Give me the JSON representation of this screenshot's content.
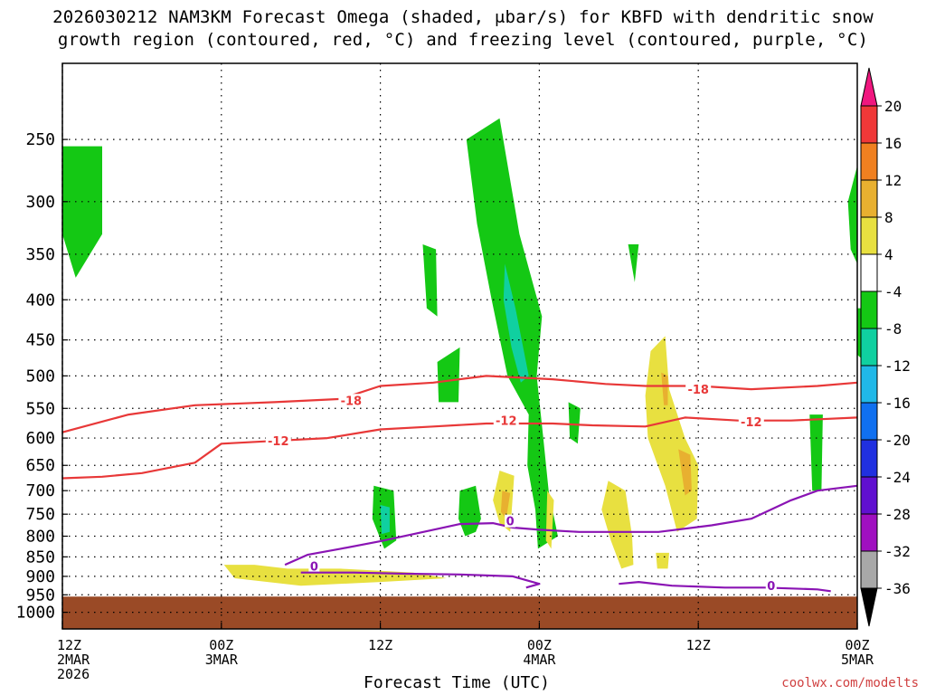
{
  "title_line1": "2026030212 NAM3KM Forecast Omega (shaded, μbar/s) for KBFD with dendritic snow",
  "title_line2": "growth region (contoured, red, °C) and freezing level (contoured, purple, °C)",
  "credit": "coolwx.com/modelts",
  "chart_data": {
    "type": "heatmap",
    "xlabel": "Forecast Time (UTC)",
    "x_ticks": [
      {
        "hour": 0,
        "l1": "12Z",
        "l2": "2MAR",
        "l3": "2026"
      },
      {
        "hour": 12,
        "l1": "00Z",
        "l2": "3MAR",
        "l3": ""
      },
      {
        "hour": 24,
        "l1": "12Z",
        "l2": "",
        "l3": ""
      },
      {
        "hour": 36,
        "l1": "00Z",
        "l2": "4MAR",
        "l3": ""
      },
      {
        "hour": 48,
        "l1": "12Z",
        "l2": "",
        "l3": ""
      },
      {
        "hour": 60,
        "l1": "00Z",
        "l2": "5MAR",
        "l3": ""
      }
    ],
    "y_ticks": [
      250,
      300,
      350,
      400,
      450,
      500,
      550,
      600,
      650,
      700,
      750,
      800,
      850,
      900,
      950,
      1000
    ],
    "ylim_hPa": [
      200,
      1050
    ],
    "grid": true,
    "colorbar": {
      "labels": [
        "20",
        "16",
        "12",
        "8",
        "4",
        "-4",
        "-8",
        "-12",
        "-16",
        "-20",
        "-24",
        "-28",
        "-32",
        "-36"
      ],
      "colors": [
        "#f0177f",
        "#f03838",
        "#f08020",
        "#e8b030",
        "#e8e040",
        "#ffffff",
        "#14c814",
        "#10d0a0",
        "#20b8e8",
        "#1070f0",
        "#2030e0",
        "#6010d0",
        "#a010c0",
        "#a8a8a8",
        "#000000"
      ]
    },
    "terrain": {
      "color": "#9a4a26",
      "surface_hPa": 955
    },
    "omega_regions": [
      {
        "level": "-4",
        "color": "#14c814",
        "points": [
          [
            0,
            255
          ],
          [
            3,
            255
          ],
          [
            3,
            330
          ],
          [
            1,
            375
          ],
          [
            0,
            330
          ]
        ]
      },
      {
        "level": "-4",
        "color": "#14c814",
        "points": [
          [
            30.5,
            250
          ],
          [
            33,
            235
          ],
          [
            34.5,
            330
          ],
          [
            36.2,
            420
          ],
          [
            35.8,
            500
          ],
          [
            36.3,
            600
          ],
          [
            36.7,
            700
          ],
          [
            37.4,
            800
          ],
          [
            35.9,
            830
          ],
          [
            35.7,
            740
          ],
          [
            35.1,
            650
          ],
          [
            35.2,
            560
          ],
          [
            33.6,
            500
          ],
          [
            32.4,
            400
          ],
          [
            31.3,
            320
          ]
        ]
      },
      {
        "level": "-8",
        "color": "#10d0a0",
        "points": [
          [
            33.4,
            360
          ],
          [
            34.2,
            410
          ],
          [
            35.2,
            500
          ],
          [
            34.6,
            510
          ],
          [
            33.9,
            460
          ],
          [
            33.3,
            400
          ]
        ]
      },
      {
        "level": "-4",
        "color": "#14c814",
        "points": [
          [
            27.2,
            340
          ],
          [
            28.2,
            345
          ],
          [
            28.3,
            420
          ],
          [
            27.5,
            410
          ]
        ]
      },
      {
        "level": "-4",
        "color": "#14c814",
        "points": [
          [
            28.3,
            480
          ],
          [
            30,
            460
          ],
          [
            29.9,
            540
          ],
          [
            28.4,
            540
          ]
        ]
      },
      {
        "level": "-4",
        "color": "#14c814",
        "points": [
          [
            23.5,
            690
          ],
          [
            25,
            700
          ],
          [
            25.2,
            810
          ],
          [
            24.3,
            830
          ],
          [
            23.4,
            760
          ]
        ]
      },
      {
        "level": "-8",
        "color": "#10d0a0",
        "points": [
          [
            24,
            730
          ],
          [
            24.7,
            735
          ],
          [
            24.7,
            790
          ],
          [
            24.1,
            795
          ]
        ]
      },
      {
        "level": "-4",
        "color": "#14c814",
        "points": [
          [
            30,
            700
          ],
          [
            31.2,
            690
          ],
          [
            31.6,
            760
          ],
          [
            31.2,
            790
          ],
          [
            30.4,
            800
          ],
          [
            29.9,
            760
          ]
        ]
      },
      {
        "level": "-4",
        "color": "#14c814",
        "points": [
          [
            38.2,
            540
          ],
          [
            39.1,
            550
          ],
          [
            38.9,
            610
          ],
          [
            38.3,
            600
          ]
        ]
      },
      {
        "level": "-4",
        "color": "#14c814",
        "points": [
          [
            42.7,
            340
          ],
          [
            43.5,
            340
          ],
          [
            43.2,
            380
          ]
        ]
      },
      {
        "level": "-4",
        "color": "#14c814",
        "points": [
          [
            56.4,
            560
          ],
          [
            57.4,
            560
          ],
          [
            57.3,
            700
          ],
          [
            56.6,
            700
          ]
        ]
      },
      {
        "level": "-4",
        "color": "#14c814",
        "points": [
          [
            59.3,
            300
          ],
          [
            60,
            270
          ],
          [
            60,
            360
          ],
          [
            59.5,
            345
          ]
        ]
      },
      {
        "level": "-4",
        "color": "#14c814",
        "points": [
          [
            60,
            410
          ],
          [
            61.2,
            410
          ],
          [
            61.2,
            490
          ],
          [
            60,
            470
          ]
        ]
      },
      {
        "level": "4",
        "color": "#e8e040",
        "points": [
          [
            44.4,
            465
          ],
          [
            45.5,
            445
          ],
          [
            45.8,
            520
          ],
          [
            47,
            600
          ],
          [
            48,
            650
          ],
          [
            47.9,
            760
          ],
          [
            46.4,
            790
          ],
          [
            45.5,
            690
          ],
          [
            44.2,
            600
          ],
          [
            44,
            530
          ]
        ]
      },
      {
        "level": "8",
        "color": "#e8b030",
        "points": [
          [
            46.5,
            620
          ],
          [
            47.4,
            630
          ],
          [
            47.5,
            700
          ],
          [
            47,
            710
          ]
        ]
      },
      {
        "level": "8",
        "color": "#e8b030",
        "points": [
          [
            45.2,
            495
          ],
          [
            45.7,
            500
          ],
          [
            45.7,
            545
          ],
          [
            45.4,
            545
          ]
        ]
      },
      {
        "level": "4",
        "color": "#e8e040",
        "points": [
          [
            33,
            660
          ],
          [
            34.1,
            670
          ],
          [
            33.8,
            790
          ],
          [
            33,
            770
          ],
          [
            32.5,
            720
          ]
        ]
      },
      {
        "level": "8",
        "color": "#e8b030",
        "points": [
          [
            33.2,
            700
          ],
          [
            33.8,
            705
          ],
          [
            33.5,
            760
          ],
          [
            33.1,
            745
          ]
        ]
      },
      {
        "level": "4",
        "color": "#e8e040",
        "points": [
          [
            36.6,
            700
          ],
          [
            37.1,
            720
          ],
          [
            36.9,
            830
          ],
          [
            36.5,
            810
          ]
        ]
      },
      {
        "level": "4",
        "color": "#e8e040",
        "points": [
          [
            41.2,
            680
          ],
          [
            42.5,
            700
          ],
          [
            43,
            800
          ],
          [
            43.1,
            870
          ],
          [
            42.2,
            880
          ],
          [
            41.4,
            810
          ],
          [
            40.7,
            740
          ]
        ]
      },
      {
        "level": "4",
        "color": "#e8e040",
        "points": [
          [
            12.2,
            870
          ],
          [
            14.5,
            870
          ],
          [
            17,
            880
          ],
          [
            21,
            880
          ],
          [
            26.5,
            890
          ],
          [
            29,
            905
          ],
          [
            24,
            915
          ],
          [
            18,
            925
          ],
          [
            13,
            905
          ]
        ]
      },
      {
        "level": "4",
        "color": "#e8e040",
        "points": [
          [
            44.8,
            840
          ],
          [
            45.8,
            840
          ],
          [
            45.7,
            880
          ],
          [
            44.9,
            880
          ]
        ]
      }
    ],
    "red_contours": [
      {
        "label": "-18",
        "points": [
          [
            0,
            590
          ],
          [
            5,
            560
          ],
          [
            10,
            545
          ],
          [
            16,
            540
          ],
          [
            21,
            535
          ],
          [
            24,
            515
          ],
          [
            28,
            510
          ],
          [
            32,
            500
          ],
          [
            37,
            505
          ],
          [
            41,
            512
          ],
          [
            44,
            515
          ],
          [
            48,
            515
          ],
          [
            52,
            520
          ],
          [
            57,
            515
          ],
          [
            60,
            510
          ]
        ],
        "label_at": [
          21.8,
          537
        ]
      },
      {
        "label": "-12",
        "points": [
          [
            0,
            675
          ],
          [
            3,
            672
          ],
          [
            6,
            665
          ],
          [
            10,
            645
          ],
          [
            12,
            610
          ],
          [
            16,
            605
          ],
          [
            20,
            600
          ],
          [
            24,
            585
          ],
          [
            28,
            580
          ],
          [
            32,
            575
          ],
          [
            37,
            575
          ],
          [
            40,
            578
          ],
          [
            44,
            580
          ],
          [
            47,
            565
          ],
          [
            51,
            570
          ],
          [
            55,
            570
          ],
          [
            60,
            565
          ]
        ],
        "label_at": [
          16.3,
          605
        ]
      },
      {
        "label": "-12",
        "points": [],
        "label_at": [
          33.5,
          570
        ]
      },
      {
        "label": "-18",
        "points": [],
        "label_at": [
          48,
          520
        ]
      },
      {
        "label": "-12",
        "points": [],
        "label_at": [
          52,
          572
        ]
      }
    ],
    "purple_contours": [
      {
        "label": "0",
        "points": [
          [
            16.8,
            870
          ],
          [
            18.5,
            845
          ],
          [
            21,
            830
          ],
          [
            24,
            812
          ],
          [
            28,
            785
          ],
          [
            30,
            772
          ],
          [
            32.5,
            770
          ],
          [
            34,
            780
          ],
          [
            36,
            785
          ],
          [
            39,
            790
          ],
          [
            42,
            790
          ],
          [
            45,
            790
          ],
          [
            49,
            775
          ],
          [
            52,
            760
          ],
          [
            55,
            720
          ],
          [
            57,
            700
          ],
          [
            60,
            690
          ]
        ],
        "label_at": [
          19,
          873
        ]
      },
      {
        "label": "0",
        "points": [
          [
            18,
            890
          ],
          [
            22,
            890
          ],
          [
            26,
            893
          ],
          [
            30,
            895
          ],
          [
            34,
            900
          ],
          [
            36,
            920
          ],
          [
            35,
            930
          ]
        ],
        "label_at": [
          33.8,
          765
        ]
      },
      {
        "label": "0",
        "points": [
          [
            42,
            920
          ],
          [
            43.5,
            915
          ],
          [
            46,
            925
          ],
          [
            50,
            930
          ],
          [
            53,
            930
          ],
          [
            57,
            935
          ],
          [
            58,
            940
          ]
        ],
        "label_at": [
          53.5,
          925
        ]
      }
    ]
  }
}
